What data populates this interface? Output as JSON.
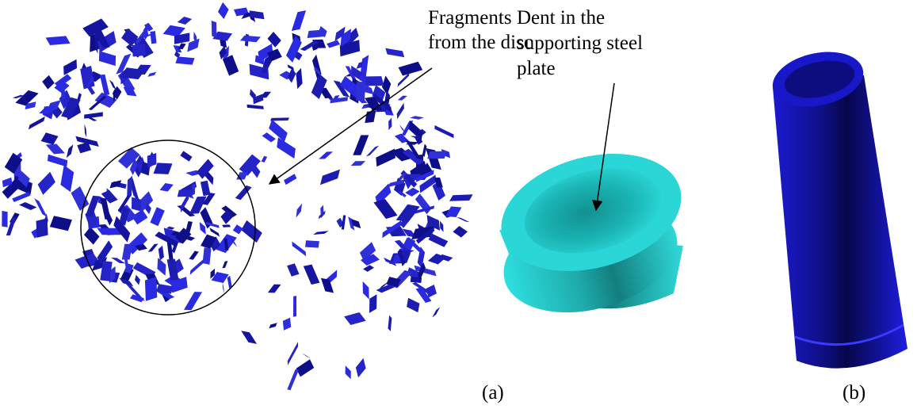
{
  "annotations": {
    "fragments": [
      "Fragments",
      "from the disc"
    ],
    "dent": [
      "Dent in the",
      "supporting steel",
      "plate"
    ]
  },
  "labels": {
    "a": "(a)",
    "b": "(b)"
  }
}
